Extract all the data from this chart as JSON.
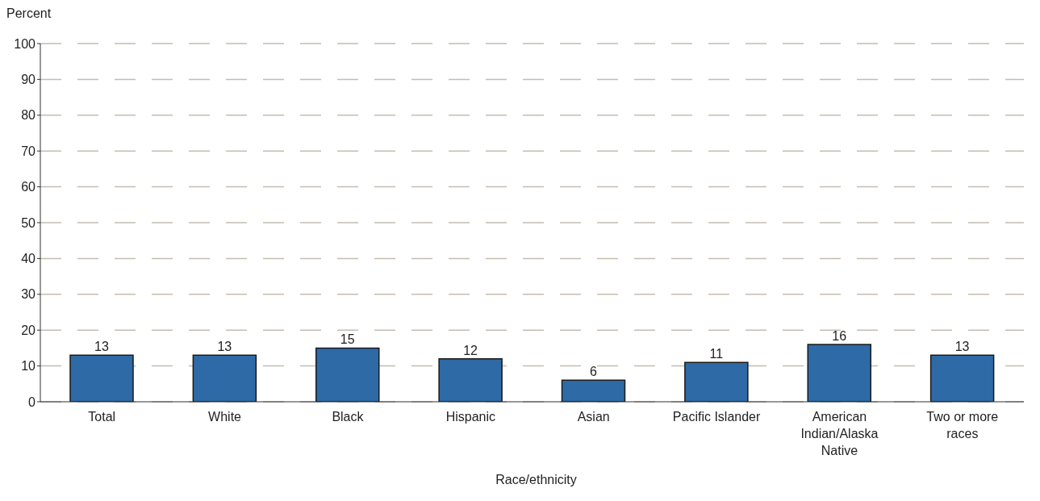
{
  "chart_data": {
    "type": "bar",
    "xlabel": "Race/ethnicity",
    "ylabel": "Percent",
    "categories": [
      "Total",
      "White",
      "Black",
      "Hispanic",
      "Asian",
      "Pacific Islander",
      "American Indian/Alaska Native",
      "Two or more races"
    ],
    "values": [
      13,
      13,
      15,
      12,
      6,
      11,
      16,
      13
    ],
    "color": "#2e6aa6",
    "data_labels": true,
    "ylim": [
      0,
      100
    ],
    "yticks": [
      0,
      10,
      20,
      30,
      40,
      50,
      60,
      70,
      80,
      90,
      100
    ],
    "grid": "y"
  }
}
